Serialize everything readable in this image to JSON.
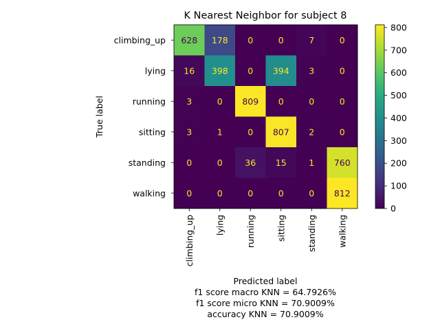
{
  "chart_data": {
    "type": "heatmap",
    "title": "K Nearest Neighbor for subject 8",
    "ylabel": "True label",
    "xlabel": "Predicted label",
    "xlabel_lines": [
      "f1 score macro KNN = 64.7926%",
      "f1 score micro KNN = 70.9009%",
      "accuracy KNN = 70.9009%"
    ],
    "row_labels": [
      "climbing_up",
      "lying",
      "running",
      "sitting",
      "standing",
      "walking"
    ],
    "col_labels": [
      "climbing_up",
      "lying",
      "running",
      "sitting",
      "standing",
      "walking"
    ],
    "values": [
      [
        628,
        178,
        0,
        0,
        7,
        0
      ],
      [
        16,
        398,
        0,
        394,
        3,
        0
      ],
      [
        3,
        0,
        809,
        0,
        0,
        0
      ],
      [
        3,
        1,
        0,
        807,
        2,
        0
      ],
      [
        0,
        0,
        36,
        15,
        1,
        760
      ],
      [
        0,
        0,
        0,
        0,
        0,
        812
      ]
    ],
    "colormap": "viridis",
    "colorbar": {
      "range": [
        0,
        812
      ],
      "ticks": [
        0,
        100,
        200,
        300,
        400,
        500,
        600,
        700,
        800
      ]
    },
    "text_colors": {
      "on_dark": "#fde725",
      "on_light": "#440154"
    }
  }
}
